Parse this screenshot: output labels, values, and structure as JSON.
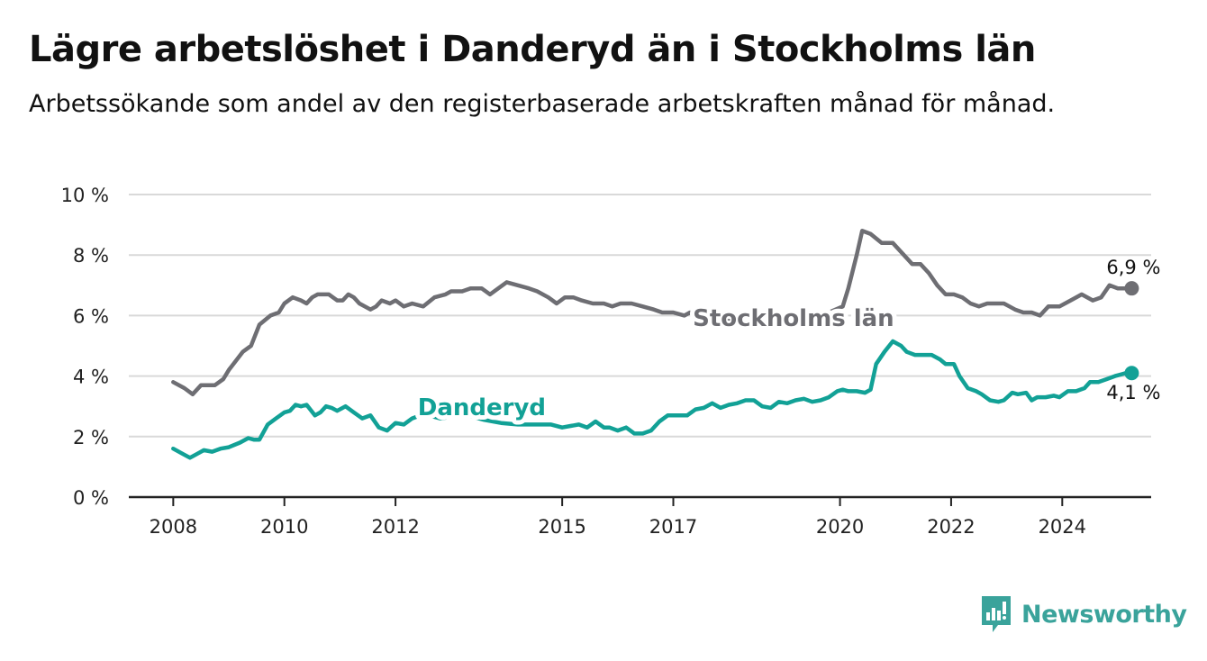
{
  "title": "Lägre arbetslöshet i Danderyd än i Stockholms län",
  "subtitle": "Arbetssökande som andel av den registerbaserade arbetskraften månad för månad.",
  "brand": {
    "name": "Newsworthy",
    "icon": "newsworthy-logo-icon",
    "color": "#3aa39b"
  },
  "colors": {
    "stockholm": "#6e6e73",
    "danderyd": "#12a196",
    "grid": "#d9d9d9",
    "axis": "#222222"
  },
  "chart_data": {
    "type": "line",
    "title": "Lägre arbetslöshet i Danderyd än i Stockholms län",
    "subtitle": "Arbetssökande som andel av den registerbaserade arbetskraften månad för månad.",
    "y_ticks": [
      {
        "value": 0,
        "label": "0 %"
      },
      {
        "value": 2,
        "label": "2 %"
      },
      {
        "value": 4,
        "label": "4 %"
      },
      {
        "value": 6,
        "label": "6 %"
      },
      {
        "value": 8,
        "label": "8 %"
      },
      {
        "value": 10,
        "label": "10 %"
      }
    ],
    "x_ticks": [
      {
        "value": 2008,
        "label": "2008"
      },
      {
        "value": 2010,
        "label": "2010"
      },
      {
        "value": 2012,
        "label": "2012"
      },
      {
        "value": 2015,
        "label": "2015"
      },
      {
        "value": 2017,
        "label": "2017"
      },
      {
        "value": 2020,
        "label": "2020"
      },
      {
        "value": 2022,
        "label": "2022"
      },
      {
        "value": 2024,
        "label": "2024"
      }
    ],
    "xlim": [
      2007.2,
      2025.6
    ],
    "ylim": [
      0,
      10
    ],
    "grid": true,
    "series": [
      {
        "name": "Stockholms län",
        "color": "#6e6e73",
        "end_label": "6,9 %",
        "points": [
          [
            2008.0,
            3.8
          ],
          [
            2008.2,
            3.6
          ],
          [
            2008.35,
            3.4
          ],
          [
            2008.5,
            3.7
          ],
          [
            2008.75,
            3.7
          ],
          [
            2008.9,
            3.9
          ],
          [
            2009.0,
            4.2
          ],
          [
            2009.25,
            4.8
          ],
          [
            2009.4,
            5.0
          ],
          [
            2009.55,
            5.7
          ],
          [
            2009.75,
            6.0
          ],
          [
            2009.9,
            6.1
          ],
          [
            2010.0,
            6.4
          ],
          [
            2010.15,
            6.6
          ],
          [
            2010.3,
            6.5
          ],
          [
            2010.4,
            6.4
          ],
          [
            2010.5,
            6.6
          ],
          [
            2010.6,
            6.7
          ],
          [
            2010.8,
            6.7
          ],
          [
            2010.95,
            6.5
          ],
          [
            2011.05,
            6.5
          ],
          [
            2011.15,
            6.7
          ],
          [
            2011.25,
            6.6
          ],
          [
            2011.35,
            6.4
          ],
          [
            2011.55,
            6.2
          ],
          [
            2011.65,
            6.3
          ],
          [
            2011.75,
            6.5
          ],
          [
            2011.9,
            6.4
          ],
          [
            2012.0,
            6.5
          ],
          [
            2012.15,
            6.3
          ],
          [
            2012.3,
            6.4
          ],
          [
            2012.5,
            6.3
          ],
          [
            2012.7,
            6.6
          ],
          [
            2012.9,
            6.7
          ],
          [
            2013.0,
            6.8
          ],
          [
            2013.2,
            6.8
          ],
          [
            2013.35,
            6.9
          ],
          [
            2013.55,
            6.9
          ],
          [
            2013.7,
            6.7
          ],
          [
            2013.85,
            6.9
          ],
          [
            2014.0,
            7.1
          ],
          [
            2014.2,
            7.0
          ],
          [
            2014.4,
            6.9
          ],
          [
            2014.55,
            6.8
          ],
          [
            2014.75,
            6.6
          ],
          [
            2014.9,
            6.4
          ],
          [
            2015.05,
            6.6
          ],
          [
            2015.2,
            6.6
          ],
          [
            2015.35,
            6.5
          ],
          [
            2015.55,
            6.4
          ],
          [
            2015.75,
            6.4
          ],
          [
            2015.9,
            6.3
          ],
          [
            2016.05,
            6.4
          ],
          [
            2016.25,
            6.4
          ],
          [
            2016.45,
            6.3
          ],
          [
            2016.65,
            6.2
          ],
          [
            2016.8,
            6.1
          ],
          [
            2017.0,
            6.1
          ],
          [
            2017.2,
            6.0
          ],
          [
            2017.3,
            6.1
          ],
          [
            2017.4,
            6.0
          ],
          [
            2017.5,
            6.1
          ],
          [
            2017.65,
            6.0
          ],
          [
            2017.9,
            5.9
          ],
          [
            2018.5,
            5.9
          ],
          [
            2018.9,
            6.0
          ],
          [
            2019.1,
            6.0
          ],
          [
            2019.5,
            6.0
          ],
          [
            2019.8,
            6.1
          ],
          [
            2020.05,
            6.3
          ],
          [
            2020.15,
            6.9
          ],
          [
            2020.3,
            8.0
          ],
          [
            2020.4,
            8.8
          ],
          [
            2020.55,
            8.7
          ],
          [
            2020.75,
            8.4
          ],
          [
            2020.95,
            8.4
          ],
          [
            2021.1,
            8.1
          ],
          [
            2021.3,
            7.7
          ],
          [
            2021.45,
            7.7
          ],
          [
            2021.6,
            7.4
          ],
          [
            2021.75,
            7.0
          ],
          [
            2021.9,
            6.7
          ],
          [
            2022.05,
            6.7
          ],
          [
            2022.2,
            6.6
          ],
          [
            2022.35,
            6.4
          ],
          [
            2022.5,
            6.3
          ],
          [
            2022.65,
            6.4
          ],
          [
            2022.8,
            6.4
          ],
          [
            2022.95,
            6.4
          ],
          [
            2023.05,
            6.3
          ],
          [
            2023.15,
            6.2
          ],
          [
            2023.3,
            6.1
          ],
          [
            2023.45,
            6.1
          ],
          [
            2023.6,
            6.0
          ],
          [
            2023.75,
            6.3
          ],
          [
            2023.95,
            6.3
          ],
          [
            2024.15,
            6.5
          ],
          [
            2024.35,
            6.7
          ],
          [
            2024.55,
            6.5
          ],
          [
            2024.7,
            6.6
          ],
          [
            2024.85,
            7.0
          ],
          [
            2025.0,
            6.9
          ],
          [
            2025.1,
            6.9
          ],
          [
            2025.25,
            6.9
          ]
        ]
      },
      {
        "name": "Danderyd",
        "color": "#12a196",
        "end_label": "4,1 %",
        "points": [
          [
            2008.0,
            1.6
          ],
          [
            2008.15,
            1.45
          ],
          [
            2008.3,
            1.3
          ],
          [
            2008.45,
            1.45
          ],
          [
            2008.55,
            1.55
          ],
          [
            2008.7,
            1.5
          ],
          [
            2008.85,
            1.6
          ],
          [
            2009.0,
            1.65
          ],
          [
            2009.2,
            1.8
          ],
          [
            2009.35,
            1.95
          ],
          [
            2009.45,
            1.9
          ],
          [
            2009.55,
            1.9
          ],
          [
            2009.7,
            2.4
          ],
          [
            2009.85,
            2.6
          ],
          [
            2010.0,
            2.8
          ],
          [
            2010.1,
            2.85
          ],
          [
            2010.2,
            3.05
          ],
          [
            2010.3,
            3.0
          ],
          [
            2010.4,
            3.05
          ],
          [
            2010.55,
            2.7
          ],
          [
            2010.65,
            2.8
          ],
          [
            2010.75,
            3.0
          ],
          [
            2010.85,
            2.95
          ],
          [
            2010.95,
            2.85
          ],
          [
            2011.1,
            3.0
          ],
          [
            2011.25,
            2.8
          ],
          [
            2011.4,
            2.6
          ],
          [
            2011.55,
            2.7
          ],
          [
            2011.7,
            2.3
          ],
          [
            2011.85,
            2.2
          ],
          [
            2012.0,
            2.45
          ],
          [
            2012.15,
            2.4
          ],
          [
            2012.3,
            2.6
          ],
          [
            2012.45,
            2.7
          ],
          [
            2012.6,
            2.7
          ],
          [
            2012.8,
            2.6
          ],
          [
            2013.0,
            2.65
          ],
          [
            2013.3,
            2.7
          ],
          [
            2013.6,
            2.55
          ],
          [
            2013.9,
            2.45
          ],
          [
            2014.2,
            2.4
          ],
          [
            2014.5,
            2.4
          ],
          [
            2014.8,
            2.4
          ],
          [
            2015.0,
            2.3
          ],
          [
            2015.15,
            2.35
          ],
          [
            2015.3,
            2.4
          ],
          [
            2015.45,
            2.3
          ],
          [
            2015.6,
            2.5
          ],
          [
            2015.75,
            2.3
          ],
          [
            2015.85,
            2.3
          ],
          [
            2016.0,
            2.2
          ],
          [
            2016.15,
            2.3
          ],
          [
            2016.3,
            2.1
          ],
          [
            2016.45,
            2.1
          ],
          [
            2016.6,
            2.2
          ],
          [
            2016.75,
            2.5
          ],
          [
            2016.9,
            2.7
          ],
          [
            2017.05,
            2.7
          ],
          [
            2017.25,
            2.7
          ],
          [
            2017.4,
            2.9
          ],
          [
            2017.55,
            2.95
          ],
          [
            2017.7,
            3.1
          ],
          [
            2017.85,
            2.95
          ],
          [
            2018.0,
            3.05
          ],
          [
            2018.15,
            3.1
          ],
          [
            2018.3,
            3.2
          ],
          [
            2018.45,
            3.2
          ],
          [
            2018.6,
            3.0
          ],
          [
            2018.75,
            2.95
          ],
          [
            2018.9,
            3.15
          ],
          [
            2019.05,
            3.1
          ],
          [
            2019.2,
            3.2
          ],
          [
            2019.35,
            3.25
          ],
          [
            2019.5,
            3.15
          ],
          [
            2019.65,
            3.2
          ],
          [
            2019.8,
            3.3
          ],
          [
            2019.95,
            3.5
          ],
          [
            2020.05,
            3.55
          ],
          [
            2020.15,
            3.5
          ],
          [
            2020.3,
            3.5
          ],
          [
            2020.45,
            3.45
          ],
          [
            2020.55,
            3.55
          ],
          [
            2020.65,
            4.4
          ],
          [
            2020.8,
            4.8
          ],
          [
            2020.95,
            5.15
          ],
          [
            2021.1,
            5.0
          ],
          [
            2021.2,
            4.8
          ],
          [
            2021.35,
            4.7
          ],
          [
            2021.5,
            4.7
          ],
          [
            2021.65,
            4.7
          ],
          [
            2021.8,
            4.55
          ],
          [
            2021.9,
            4.4
          ],
          [
            2022.05,
            4.4
          ],
          [
            2022.15,
            4.0
          ],
          [
            2022.3,
            3.6
          ],
          [
            2022.45,
            3.5
          ],
          [
            2022.55,
            3.4
          ],
          [
            2022.7,
            3.2
          ],
          [
            2022.85,
            3.15
          ],
          [
            2022.95,
            3.2
          ],
          [
            2023.1,
            3.45
          ],
          [
            2023.2,
            3.4
          ],
          [
            2023.35,
            3.45
          ],
          [
            2023.45,
            3.2
          ],
          [
            2023.55,
            3.3
          ],
          [
            2023.7,
            3.3
          ],
          [
            2023.85,
            3.35
          ],
          [
            2023.95,
            3.3
          ],
          [
            2024.1,
            3.5
          ],
          [
            2024.25,
            3.5
          ],
          [
            2024.4,
            3.6
          ],
          [
            2024.5,
            3.8
          ],
          [
            2024.65,
            3.8
          ],
          [
            2024.8,
            3.9
          ],
          [
            2024.95,
            4.0
          ],
          [
            2025.05,
            4.05
          ],
          [
            2025.15,
            4.1
          ],
          [
            2025.25,
            4.1
          ]
        ]
      }
    ],
    "annotations": [
      {
        "series": "Stockholms län",
        "text": "Stockholms län",
        "x": 2017.35,
        "y": 5.6
      },
      {
        "series": "Danderyd",
        "text": "Danderyd",
        "x": 2012.4,
        "y": 2.65
      }
    ]
  }
}
